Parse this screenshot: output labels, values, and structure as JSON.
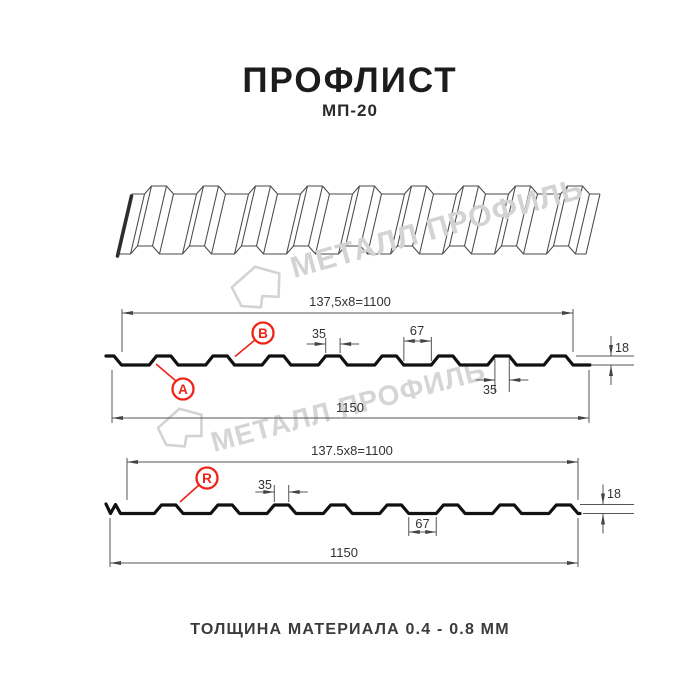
{
  "page": {
    "title": "ПРОФЛИСТ",
    "subtitle": "МП-20",
    "footer": "ТОЛЩИНА МАТЕРИАЛА 0.4 - 0.8 ММ"
  },
  "watermark": {
    "text": "МЕТАЛЛ ПРОФИЛЬ",
    "text2": "МЕТАЛЛ ПРОФИЛЬ"
  },
  "colors": {
    "accent_red": "#ee2418",
    "drawing_line": "#111111",
    "dimension_line": "#555555",
    "watermark_gray": "#d3d3d3"
  },
  "profile_a": {
    "width_formula": "137,5x8=1100",
    "crest_top_width": "35",
    "groove_width": "67",
    "height": "18",
    "crest_top_width_2": "35",
    "total_width": "1150",
    "label_a": "A",
    "label_b": "B"
  },
  "profile_r": {
    "width_formula": "137.5x8=1100",
    "crest_top_width": "35",
    "groove_width": "67",
    "height": "18",
    "total_width": "1150",
    "label_r": "R"
  }
}
